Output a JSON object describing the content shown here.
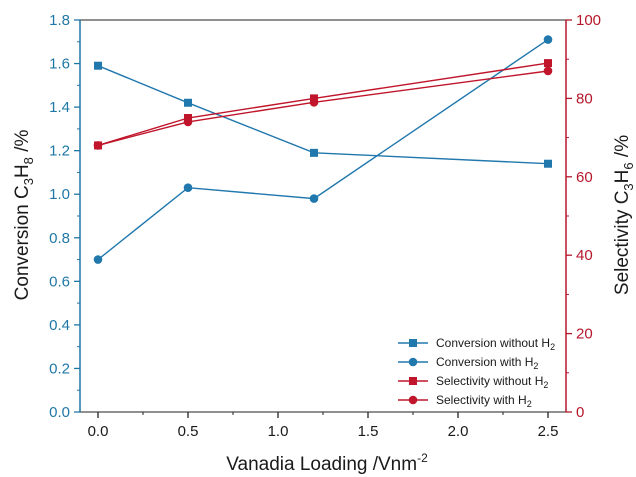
{
  "chart_data": {
    "type": "line",
    "x_values": [
      0.0,
      0.5,
      1.2,
      2.5
    ],
    "xlabel": "Vanadia Loading /Vnm",
    "xlabel_sup": "-2",
    "xlim": [
      -0.1,
      2.6
    ],
    "x_ticks": [
      "0.0",
      "0.5",
      "1.0",
      "1.5",
      "2.0",
      "2.5"
    ],
    "ylabel_left": {
      "pre": "Conversion C",
      "s1": "3",
      "mid": "H",
      "s2": "8",
      "post": " /%"
    },
    "ylim_left": [
      0,
      1.8
    ],
    "y_ticks_left": [
      "0.0",
      "0.2",
      "0.4",
      "0.6",
      "0.8",
      "1.0",
      "1.2",
      "1.4",
      "1.6",
      "1.8"
    ],
    "ylabel_right": {
      "pre": "Selectivity C",
      "s1": "3",
      "mid": "H",
      "s2": "6",
      "post": " /%"
    },
    "ylim_right": [
      0,
      100
    ],
    "y_ticks_right": [
      "0",
      "20",
      "40",
      "60",
      "80",
      "100"
    ],
    "colors": {
      "left_axis": "#1f77a6",
      "right_axis": "#b5172b",
      "blue": "#2178ad",
      "red": "#c0152b"
    },
    "legend_position": "bottom-right",
    "series": [
      {
        "name": "Conversion without H",
        "sub": "2",
        "axis": "left",
        "marker": "square",
        "color": "#2178ad",
        "values": [
          1.59,
          1.42,
          1.19,
          1.14
        ]
      },
      {
        "name": "Conversion with H",
        "sub": "2",
        "axis": "left",
        "marker": "circle",
        "color": "#2178ad",
        "values": [
          0.7,
          1.03,
          0.98,
          1.71
        ]
      },
      {
        "name": "Selectivity without H",
        "sub": "2",
        "axis": "right",
        "marker": "square",
        "color": "#c0152b",
        "values": [
          68,
          75,
          80,
          89
        ]
      },
      {
        "name": "Selectivity with H",
        "sub": "2",
        "axis": "right",
        "marker": "circle",
        "color": "#c0152b",
        "values": [
          68,
          74,
          79,
          87
        ]
      }
    ]
  }
}
